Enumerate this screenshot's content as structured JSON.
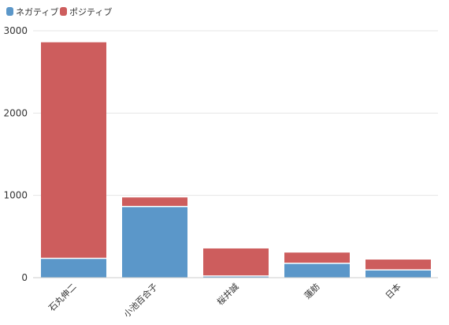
{
  "chart_data": {
    "type": "bar",
    "stacked": true,
    "categories": [
      "石丸伸二",
      "小池百合子",
      "桜井誠",
      "蓮舫",
      "日本"
    ],
    "series": [
      {
        "name": "ネガティブ",
        "color": "#5b97c9",
        "values": [
          235,
          865,
          20,
          175,
          95
        ]
      },
      {
        "name": "ポジティブ",
        "color": "#cd5d5d",
        "values": [
          2625,
          110,
          335,
          130,
          125
        ]
      }
    ],
    "ylim": [
      0,
      3000
    ],
    "yticks": [
      "0",
      "1000",
      "2000",
      "3000"
    ],
    "grid": true,
    "legend_position": "top-left",
    "x_label_rotation": "-45deg",
    "title": "",
    "xlabel": "",
    "ylabel": ""
  }
}
